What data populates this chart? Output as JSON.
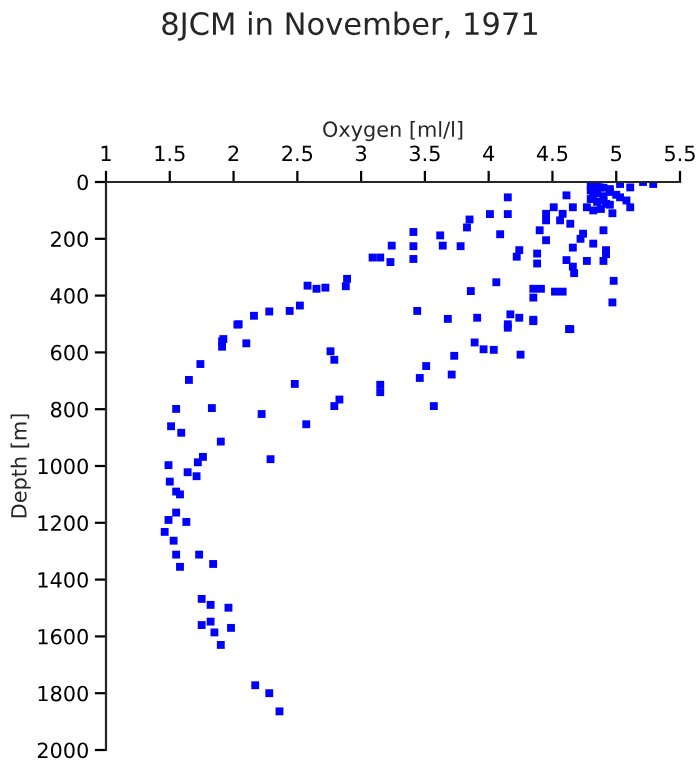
{
  "chart_data": {
    "type": "scatter",
    "title": "8JCM in November, 1971",
    "xlabel": "Oxygen [ml/l]",
    "ylabel": "Depth [m]",
    "xlim": [
      1,
      5.5
    ],
    "xticks": [
      1,
      1.5,
      2,
      2.5,
      3,
      3.5,
      4,
      4.5,
      5,
      5.5
    ],
    "ylim": [
      2000,
      0
    ],
    "yticks": [
      0,
      200,
      400,
      600,
      800,
      1000,
      1200,
      1400,
      1600,
      1800,
      2000
    ],
    "grid": false,
    "marker": "square",
    "series": [
      {
        "color": "#0000ff",
        "x": [
          5.29,
          5.21,
          5.11,
          5.03,
          5.08,
          5.11,
          5.03,
          4.87,
          4.82,
          4.92,
          4.77,
          4.66,
          4.61,
          4.58,
          4.56,
          4.64,
          4.45,
          4.45,
          4.51,
          4.9,
          4.74,
          4.72,
          4.82,
          4.92,
          4.38,
          4.45,
          4.4,
          4.24,
          4.22,
          4.38,
          4.61,
          4.66,
          4.67,
          4.77,
          4.9,
          4.92,
          4.66,
          4.8,
          4.85,
          4.9,
          4.95,
          4.8,
          4.85,
          4.9,
          4.95,
          5.0,
          4.8,
          4.85,
          4.9,
          4.95,
          4.82,
          4.88,
          4.97,
          4.01,
          4.15,
          4.15,
          4.09,
          3.85,
          3.83,
          3.62,
          3.78,
          3.64,
          3.41,
          3.41,
          3.24,
          3.23,
          3.15,
          3.09,
          3.41,
          2.89,
          2.88,
          2.72,
          2.65,
          2.58,
          2.52,
          2.44,
          2.28,
          2.16,
          2.04,
          1.92,
          3.44,
          3.68,
          3.91,
          3.86,
          4.06,
          4.17,
          4.15,
          4.24,
          4.35,
          4.35,
          4.35,
          4.41,
          4.52,
          4.58,
          4.63,
          4.97,
          4.98,
          2.03,
          2.1,
          1.91,
          1.91,
          1.74,
          1.65,
          1.55,
          1.83,
          1.51,
          1.59,
          1.9,
          1.76,
          1.72,
          1.49,
          1.64,
          1.71,
          1.5,
          1.55,
          1.58,
          1.55,
          1.49,
          1.63,
          1.46,
          1.53,
          1.55,
          1.73,
          2.22,
          2.29,
          2.48,
          2.57,
          2.76,
          2.79,
          2.79,
          2.83,
          3.15,
          3.15,
          3.46,
          3.51,
          3.57,
          3.71,
          3.73,
          3.89,
          3.96,
          4.04,
          4.15,
          4.25,
          4.35,
          4.64,
          1.58,
          1.84,
          1.75,
          1.82,
          1.96,
          1.75,
          1.82,
          1.85,
          1.98,
          1.9,
          2.17,
          2.28,
          2.36
        ],
        "values": [
          7,
          0,
          19,
          7,
          65,
          89,
          54,
          19,
          42,
          77,
          89,
          89,
          47,
          112,
          135,
          147,
          112,
          135,
          89,
          170,
          182,
          200,
          217,
          240,
          252,
          205,
          170,
          240,
          263,
          287,
          275,
          298,
          321,
          278,
          278,
          254,
          231,
          10,
          15,
          20,
          25,
          30,
          40,
          50,
          35,
          45,
          60,
          70,
          65,
          80,
          100,
          95,
          110,
          113,
          113,
          54,
          184,
          132,
          160,
          188,
          226,
          224,
          176,
          226,
          224,
          282,
          266,
          266,
          271,
          341,
          367,
          372,
          376,
          365,
          435,
          454,
          456,
          471,
          501,
          553,
          454,
          482,
          478,
          384,
          353,
          466,
          501,
          478,
          485,
          376,
          407,
          376,
          386,
          386,
          518,
          424,
          348,
          502,
          568,
          561,
          580,
          641,
          697,
          799,
          796,
          860,
          883,
          914,
          968,
          987,
          997,
          1022,
          1036,
          1055,
          1090,
          1100,
          1164,
          1190,
          1197,
          1232,
          1263,
          1312,
          1312,
          817,
          976,
          711,
          853,
          596,
          626,
          789,
          766,
          714,
          740,
          690,
          648,
          789,
          678,
          612,
          565,
          589,
          591,
          513,
          608,
          490,
          518,
          1355,
          1345,
          1468,
          1489,
          1499,
          1560,
          1548,
          1586,
          1570,
          1630,
          1772,
          1800,
          1864
        ]
      }
    ]
  }
}
